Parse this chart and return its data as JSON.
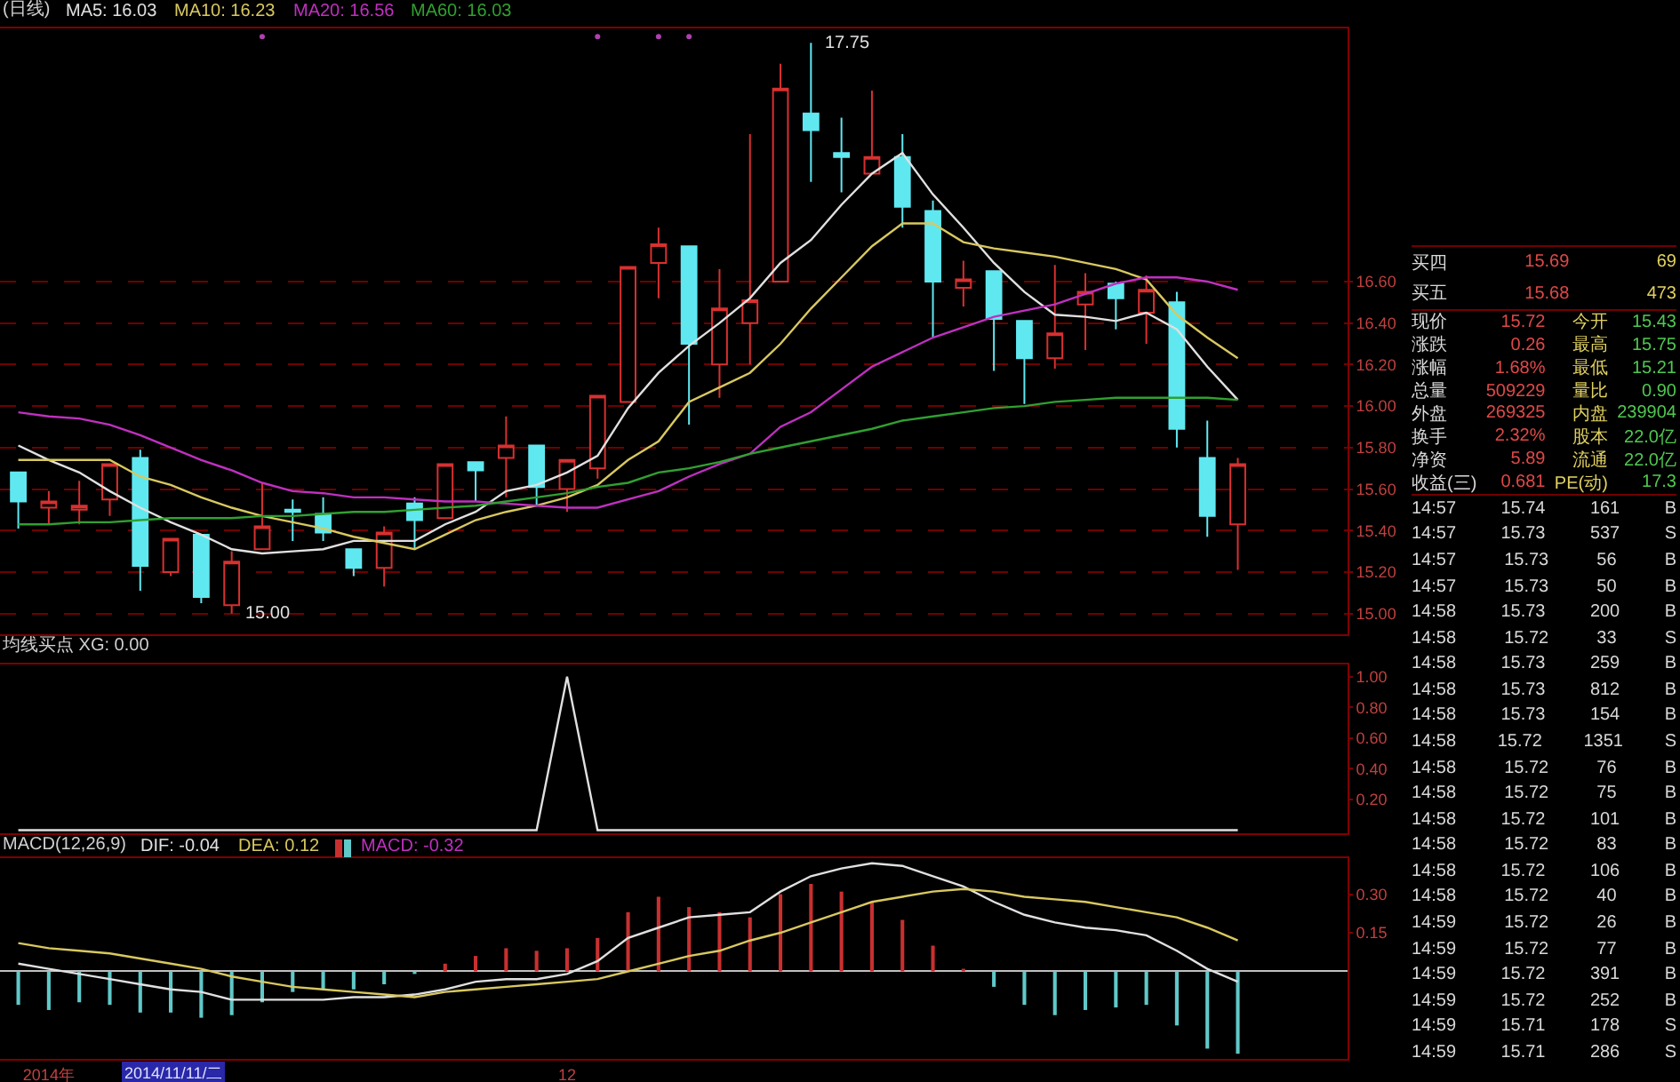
{
  "chart_data": [
    {
      "type": "candlestick",
      "title": "(日线)",
      "legend": "top left",
      "grid": "y",
      "tick_labels": "y",
      "categories": [
        null,
        null,
        null,
        null,
        null,
        null,
        null,
        null,
        null,
        null,
        null,
        null,
        null,
        null,
        null,
        null,
        null,
        null,
        null,
        null,
        null,
        null,
        null,
        null,
        null,
        null,
        null,
        null,
        null,
        null,
        null,
        null,
        null,
        null,
        null,
        null,
        null,
        null,
        null,
        null,
        null
      ],
      "ohlc": [
        [
          15.68,
          15.68,
          15.41,
          15.54
        ],
        [
          15.51,
          15.59,
          15.43,
          15.54
        ],
        [
          15.5,
          15.64,
          15.43,
          15.52
        ],
        [
          15.55,
          15.72,
          15.47,
          15.72
        ],
        [
          15.75,
          15.79,
          15.11,
          15.23
        ],
        [
          15.2,
          15.36,
          15.18,
          15.36
        ],
        [
          15.38,
          15.38,
          15.05,
          15.08
        ],
        [
          15.04,
          15.3,
          15.0,
          15.25
        ],
        [
          15.31,
          15.63,
          15.31,
          15.42
        ],
        [
          15.5,
          15.55,
          15.35,
          15.49
        ],
        [
          15.48,
          15.56,
          15.35,
          15.39
        ],
        [
          15.31,
          15.31,
          15.18,
          15.22
        ],
        [
          15.22,
          15.42,
          15.13,
          15.39
        ],
        [
          15.53,
          15.56,
          15.31,
          15.45
        ],
        [
          15.46,
          15.72,
          15.46,
          15.72
        ],
        [
          15.73,
          15.73,
          15.54,
          15.69
        ],
        [
          15.75,
          15.95,
          15.56,
          15.81
        ],
        [
          15.81,
          15.81,
          15.52,
          15.61
        ],
        [
          15.6,
          15.74,
          15.49,
          15.74
        ],
        [
          15.7,
          16.05,
          15.65,
          16.05
        ],
        [
          16.02,
          16.67,
          16.02,
          16.67
        ],
        [
          16.69,
          16.86,
          16.52,
          16.78
        ],
        [
          16.77,
          16.77,
          15.91,
          16.3
        ],
        [
          16.2,
          16.66,
          16.04,
          16.47
        ],
        [
          16.4,
          17.31,
          16.2,
          16.51
        ],
        [
          16.6,
          17.65,
          16.6,
          17.53
        ],
        [
          17.41,
          17.75,
          17.08,
          17.33
        ],
        [
          17.22,
          17.39,
          17.03,
          17.2
        ],
        [
          17.12,
          17.52,
          17.12,
          17.2
        ],
        [
          17.2,
          17.31,
          16.86,
          16.96
        ],
        [
          16.94,
          16.99,
          16.33,
          16.6
        ],
        [
          16.57,
          16.7,
          16.48,
          16.61
        ],
        [
          16.65,
          16.65,
          16.17,
          16.42
        ],
        [
          16.41,
          16.41,
          16.01,
          16.23
        ],
        [
          16.23,
          16.68,
          16.18,
          16.35
        ],
        [
          16.49,
          16.64,
          16.27,
          16.55
        ],
        [
          16.59,
          16.6,
          16.37,
          16.52
        ],
        [
          16.45,
          16.63,
          16.3,
          16.56
        ],
        [
          16.5,
          16.55,
          15.8,
          15.89
        ],
        [
          15.75,
          15.93,
          15.37,
          15.47
        ],
        [
          15.43,
          15.75,
          15.21,
          15.72
        ]
      ],
      "series": [
        {
          "name": "MA5: 16.03",
          "type": "line",
          "color": "#e0e0e0",
          "values": [
            15.81,
            15.74,
            15.68,
            15.59,
            15.51,
            15.44,
            15.38,
            15.31,
            15.29,
            15.3,
            15.31,
            15.35,
            15.35,
            15.35,
            15.43,
            15.49,
            15.59,
            15.62,
            15.68,
            15.76,
            15.99,
            16.16,
            16.29,
            16.4,
            16.52,
            16.69,
            16.8,
            16.97,
            17.12,
            17.22,
            17.02,
            16.86,
            16.69,
            16.55,
            16.44,
            16.43,
            16.41,
            16.45,
            16.37,
            16.19,
            16.03
          ]
        },
        {
          "name": "MA10: 16.23",
          "type": "line",
          "color": "#d8c860",
          "values": [
            15.74,
            15.74,
            15.74,
            15.74,
            15.66,
            15.62,
            15.56,
            15.51,
            15.47,
            15.44,
            15.41,
            15.37,
            15.34,
            15.31,
            15.38,
            15.45,
            15.49,
            15.52,
            15.56,
            15.62,
            15.74,
            15.83,
            16.02,
            16.09,
            16.16,
            16.3,
            16.47,
            16.62,
            16.77,
            16.88,
            16.88,
            16.79,
            16.76,
            16.74,
            16.72,
            16.69,
            16.66,
            16.61,
            16.44,
            16.33,
            16.23
          ]
        },
        {
          "name": "MA20: 16.56",
          "type": "line",
          "color": "#c030c0",
          "values": [
            15.97,
            15.95,
            15.94,
            15.91,
            15.86,
            15.8,
            15.74,
            15.69,
            15.63,
            15.59,
            15.58,
            15.56,
            15.56,
            15.55,
            15.54,
            15.54,
            15.53,
            15.52,
            15.51,
            15.51,
            15.55,
            15.59,
            15.66,
            15.72,
            15.77,
            15.9,
            15.97,
            16.08,
            16.19,
            16.26,
            16.33,
            16.38,
            16.43,
            16.46,
            16.49,
            16.54,
            16.59,
            16.62,
            16.62,
            16.6,
            16.56
          ]
        },
        {
          "name": "MA60: 16.03",
          "type": "line",
          "color": "#30a030",
          "values": [
            15.43,
            15.43,
            15.44,
            15.44,
            15.45,
            15.46,
            15.46,
            15.46,
            15.47,
            15.47,
            15.48,
            15.49,
            15.49,
            15.5,
            15.51,
            15.52,
            15.54,
            15.56,
            15.58,
            15.61,
            15.63,
            15.68,
            15.7,
            15.73,
            15.77,
            15.8,
            15.83,
            15.86,
            15.89,
            15.93,
            15.95,
            15.97,
            15.99,
            16.0,
            16.02,
            16.03,
            16.04,
            16.04,
            16.04,
            16.04,
            16.03
          ]
        },
        {
          "type": "scatter",
          "color": "#b040b0",
          "values": [
            null,
            null,
            null,
            null,
            null,
            null,
            null,
            null,
            17.78,
            null,
            null,
            null,
            null,
            null,
            null,
            null,
            null,
            null,
            null,
            17.78,
            null,
            17.78,
            17.78,
            null,
            null,
            null,
            null,
            null,
            null,
            null,
            null,
            null,
            null,
            null,
            null,
            null,
            null,
            null,
            null,
            null,
            null
          ]
        }
      ],
      "ylim": [
        14.9,
        17.82
      ],
      "yticks": [
        {
          "value": 15,
          "label": "15.00"
        },
        {
          "value": 15.2,
          "label": "15.20"
        },
        {
          "value": 15.4,
          "label": "15.40"
        },
        {
          "value": 15.6,
          "label": "15.60"
        },
        {
          "value": 15.8,
          "label": "15.80"
        },
        {
          "value": 16,
          "label": "16.00"
        },
        {
          "value": 16.2,
          "label": "16.20"
        },
        {
          "value": 16.4,
          "label": "16.40"
        },
        {
          "value": 16.6,
          "label": "16.60"
        }
      ],
      "annotations": [
        "15.00",
        "17.75"
      ]
    },
    {
      "type": "line",
      "title": "均线买点 XG: 0.00",
      "tick_labels": "y",
      "categories": [
        null,
        null,
        null,
        null,
        null,
        null,
        null,
        null,
        null,
        null,
        null,
        null,
        null,
        null,
        null,
        null,
        null,
        null,
        null,
        null,
        null,
        null,
        null,
        null,
        null,
        null,
        null,
        null,
        null,
        null,
        null,
        null,
        null,
        null,
        null,
        null,
        null,
        null,
        null,
        null,
        null
      ],
      "series": [
        {
          "color": "#e0e0e0",
          "values": [
            0,
            0,
            0,
            0,
            0,
            0,
            0,
            0,
            0,
            0,
            0,
            0,
            0,
            0,
            0,
            0,
            0,
            0,
            1,
            0,
            0,
            0,
            0,
            0,
            0,
            0,
            0,
            0,
            0,
            0,
            0,
            0,
            0,
            0,
            0,
            0,
            0,
            0,
            0,
            0,
            0
          ]
        }
      ],
      "ylim": [
        -0.02,
        1.08
      ],
      "yticks": [
        {
          "value": 0.2,
          "label": "0.20"
        },
        {
          "value": 0.4,
          "label": "0.40"
        },
        {
          "value": 0.6,
          "label": "0.60"
        },
        {
          "value": 0.8,
          "label": "0.80"
        },
        {
          "value": 1,
          "label": "1.00"
        }
      ]
    },
    {
      "type": "bar",
      "title": "MACD(12,26,9)",
      "legend": "top left",
      "categories": [
        null,
        "2014年",
        null,
        null,
        null,
        null,
        null,
        null,
        null,
        null,
        null,
        null,
        null,
        null,
        null,
        null,
        null,
        null,
        "12",
        null,
        null,
        null,
        null,
        null,
        null,
        null,
        null,
        null,
        null,
        null,
        null,
        null,
        null,
        null,
        null,
        null,
        null,
        null,
        null,
        null,
        null
      ],
      "series": [
        {
          "name": "DIF: -0.04",
          "type": "line",
          "color": "#e0e0e0",
          "values": [
            0.03,
            0.01,
            -0.01,
            -0.03,
            -0.05,
            -0.07,
            -0.08,
            -0.11,
            -0.11,
            -0.11,
            -0.11,
            -0.1,
            -0.1,
            -0.09,
            -0.07,
            -0.04,
            -0.03,
            -0.03,
            -0.01,
            0.04,
            0.13,
            0.17,
            0.21,
            0.22,
            0.23,
            0.31,
            0.37,
            0.4,
            0.42,
            0.41,
            0.37,
            0.33,
            0.27,
            0.22,
            0.19,
            0.17,
            0.16,
            0.14,
            0.08,
            0.01,
            -0.04
          ]
        },
        {
          "name": "DEA: 0.12",
          "type": "line",
          "color": "#d8c860",
          "values": [
            0.11,
            0.09,
            0.08,
            0.07,
            0.05,
            0.03,
            0.01,
            -0.02,
            -0.04,
            -0.06,
            -0.07,
            -0.08,
            -0.09,
            -0.1,
            -0.08,
            -0.07,
            -0.06,
            -0.05,
            -0.04,
            -0.03,
            0.0,
            0.03,
            0.06,
            0.08,
            0.12,
            0.15,
            0.19,
            0.23,
            0.27,
            0.29,
            0.31,
            0.32,
            0.31,
            0.29,
            0.28,
            0.27,
            0.25,
            0.23,
            0.21,
            0.17,
            0.12
          ]
        },
        {
          "name": "MACD: -0.32",
          "type": "bar",
          "color": "#c030c0",
          "values": [
            -0.13,
            -0.15,
            -0.12,
            -0.13,
            -0.16,
            -0.16,
            -0.18,
            -0.17,
            -0.12,
            -0.08,
            -0.07,
            -0.07,
            -0.05,
            -0.01,
            0.03,
            0.06,
            0.09,
            0.08,
            0.09,
            0.13,
            0.23,
            0.29,
            0.25,
            0.23,
            0.21,
            0.3,
            0.34,
            0.31,
            0.27,
            0.2,
            0.1,
            0.01,
            -0.06,
            -0.13,
            -0.17,
            -0.15,
            -0.14,
            -0.13,
            -0.21,
            -0.3,
            -0.32
          ],
          "colors": [
            "#60c8c8",
            "#60c8c8",
            "#60c8c8",
            "#60c8c8",
            "#60c8c8",
            "#60c8c8",
            "#60c8c8",
            "#60c8c8",
            "#60c8c8",
            "#60c8c8",
            "#60c8c8",
            "#60c8c8",
            "#60c8c8",
            "#60c8c8",
            "#c83030",
            "#c83030",
            "#c83030",
            "#c83030",
            "#c83030",
            "#c83030",
            "#c83030",
            "#c83030",
            "#c83030",
            "#c83030",
            "#c83030",
            "#c83030",
            "#c83030",
            "#c83030",
            "#c83030",
            "#c83030",
            "#c83030",
            "#c83030",
            "#60c8c8",
            "#60c8c8",
            "#60c8c8",
            "#60c8c8",
            "#60c8c8",
            "#60c8c8",
            "#60c8c8",
            "#60c8c8",
            "#60c8c8"
          ]
        }
      ],
      "ylim": [
        -0.34,
        0.44
      ],
      "yticks": [
        {
          "value": 0.15,
          "label": "0.15"
        },
        {
          "value": 0.3,
          "label": "0.30"
        }
      ],
      "annotations": [
        "2014/11/11/二"
      ]
    },
    {
      "type": "other",
      "annotations": [
        "买四",
        "15.69",
        "69",
        "买五",
        "15.68",
        "473"
      ]
    },
    {
      "type": "other",
      "annotations": [
        "现价",
        "15.72",
        "今开",
        "15.43",
        "涨跌",
        "0.26",
        "最高",
        "15.75",
        "涨幅",
        "1.68%",
        "最低",
        "15.21",
        "总量",
        "509229",
        "量比",
        "0.90",
        "外盘",
        "269325",
        "内盘",
        "239904",
        "换手",
        "2.32%",
        "股本",
        "22.0亿",
        "净资",
        "5.89",
        "流通",
        "22.0亿",
        "收益(三)",
        "0.681",
        "PE(动)",
        "17.3"
      ]
    },
    {
      "type": "other",
      "annotations": [
        "14:57 15.74 161 B",
        "14:57 15.73 537 S",
        "14:57 15.73 56 B",
        "14:57 15.73 50 B",
        "14:58 15.73 200 B",
        "14:58 15.72 33 S",
        "14:58 15.73 259 B",
        "14:58 15.73 812 B",
        "14:58 15.73 154 B",
        "14:58 15.72 1351 S",
        "14:58 15.72 76 B",
        "14:58 15.72 75 B",
        "14:58 15.72 101 B",
        "14:58 15.72 83 B",
        "14:58 15.72 106 B",
        "14:58 15.72 40 B",
        "14:59 15.72 26 B",
        "14:59 15.72 77 B",
        "14:59 15.72 391 B",
        "14:59 15.72 252 B",
        "14:59 15.71 178 S",
        "14:59 15.71 286 S"
      ]
    }
  ]
}
